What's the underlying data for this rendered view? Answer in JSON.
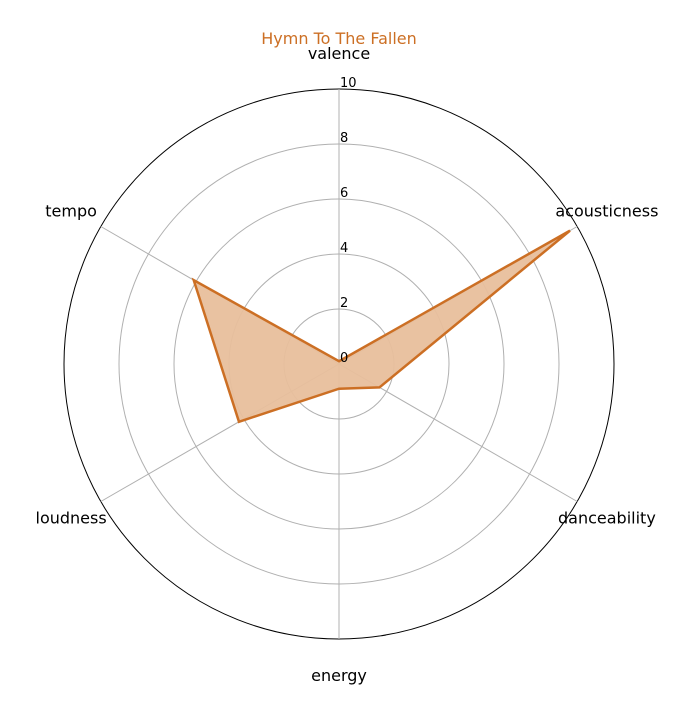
{
  "chart_data": {
    "type": "radar",
    "title": "Hymn To The Fallen",
    "axes": [
      "valence",
      "acousticness",
      "danceability",
      "energy",
      "loudness",
      "tempo"
    ],
    "series": [
      {
        "values": [
          0.1,
          9.7,
          1.7,
          0.9,
          4.2,
          6.1
        ]
      }
    ],
    "rlim": [
      0,
      10
    ],
    "r_ticks": [
      0,
      2,
      4,
      6,
      8,
      10
    ],
    "grid": true,
    "colors": {
      "series": "#cc6f24",
      "fill": "#e8bf9c",
      "grid": "#b0b0b0",
      "title": "#cc6f24"
    }
  }
}
